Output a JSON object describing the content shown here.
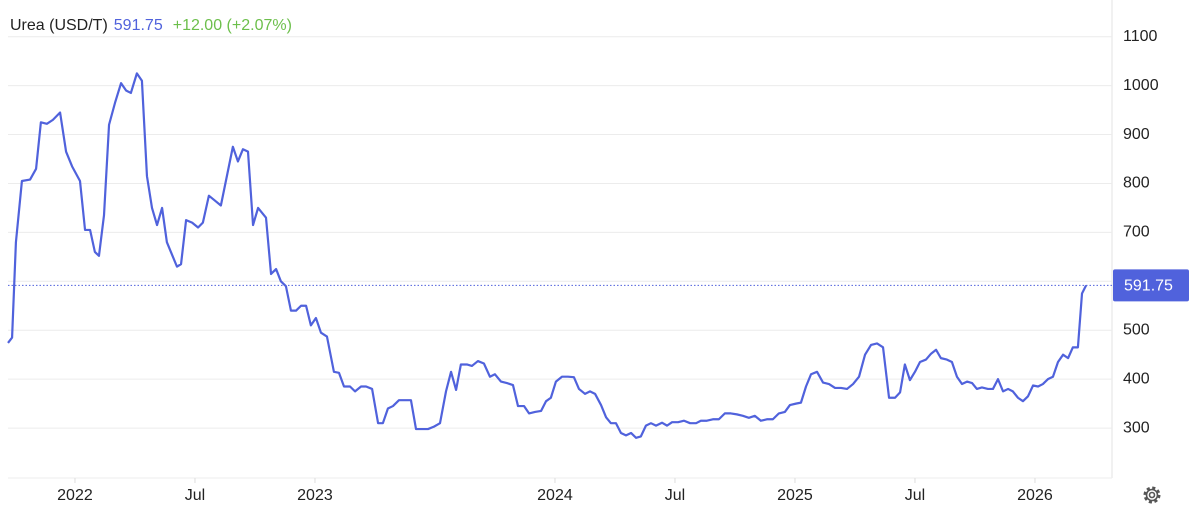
{
  "chart_data": {
    "type": "line",
    "last_price": 591.75,
    "change": "+12.00 (+2.07%)",
    "x": [
      2021.721,
      2021.738,
      2021.754,
      2021.779,
      2021.813,
      2021.838,
      2021.858,
      2021.883,
      2021.908,
      2021.938,
      2021.963,
      2021.988,
      2022.021,
      2022.042,
      2022.063,
      2022.083,
      2022.1,
      2022.121,
      2022.142,
      2022.167,
      2022.192,
      2022.213,
      2022.233,
      2022.258,
      2022.279,
      2022.3,
      2022.321,
      2022.342,
      2022.363,
      2022.383,
      2022.404,
      2022.425,
      2022.442,
      2022.463,
      2022.488,
      2022.513,
      2022.533,
      2022.558,
      2022.583,
      2022.608,
      2022.633,
      2022.658,
      2022.679,
      2022.7,
      2022.721,
      2022.742,
      2022.763,
      2022.796,
      2022.817,
      2022.838,
      2022.858,
      2022.879,
      2022.9,
      2022.921,
      2022.942,
      2022.963,
      2022.983,
      2023.004,
      2023.025,
      2023.05,
      2023.079,
      2023.1,
      2023.121,
      2023.146,
      2023.167,
      2023.192,
      2023.213,
      2023.238,
      2023.263,
      2023.283,
      2023.304,
      2023.325,
      2023.35,
      2023.379,
      2023.4,
      2023.421,
      2023.446,
      2023.471,
      2023.496,
      2023.521,
      2023.546,
      2023.567,
      2023.588,
      2023.608,
      2023.633,
      2023.654,
      2023.679,
      2023.704,
      2023.729,
      2023.75,
      2023.775,
      2023.8,
      2023.825,
      2023.846,
      2023.871,
      2023.892,
      2023.917,
      2023.942,
      2023.963,
      2023.983,
      2024.004,
      2024.029,
      2024.054,
      2024.079,
      2024.1,
      2024.125,
      2024.146,
      2024.167,
      2024.192,
      2024.213,
      2024.233,
      2024.254,
      2024.275,
      2024.296,
      2024.317,
      2024.338,
      2024.358,
      2024.379,
      2024.4,
      2024.421,
      2024.446,
      2024.467,
      2024.488,
      2024.513,
      2024.538,
      2024.563,
      2024.588,
      2024.608,
      2024.633,
      2024.658,
      2024.683,
      2024.708,
      2024.733,
      2024.758,
      2024.783,
      2024.808,
      2024.833,
      2024.858,
      2024.883,
      2024.908,
      2024.933,
      2024.958,
      2024.979,
      2025.004,
      2025.025,
      2025.046,
      2025.067,
      2025.092,
      2025.117,
      2025.142,
      2025.167,
      2025.192,
      2025.217,
      2025.242,
      2025.267,
      2025.292,
      2025.317,
      2025.342,
      2025.367,
      2025.392,
      2025.417,
      2025.438,
      2025.458,
      2025.479,
      2025.5,
      2025.521,
      2025.546,
      2025.567,
      2025.588,
      2025.608,
      2025.633,
      2025.654,
      2025.675,
      2025.696,
      2025.717,
      2025.738,
      2025.758,
      2025.779,
      2025.804,
      2025.825,
      2025.846,
      2025.867,
      2025.888,
      2025.908,
      2025.929,
      2025.95,
      2025.971,
      2025.992,
      2026.013,
      2026.033,
      2026.054,
      2026.075,
      2026.096,
      2026.117,
      2026.138,
      2026.158,
      2026.179,
      2026.196,
      2026.213
    ],
    "series": [
      {
        "name": "Urea (USD/T)",
        "color": "#5062dc",
        "values": [
          474,
          485,
          680,
          805,
          808,
          830,
          925,
          922,
          930,
          945,
          865,
          835,
          805,
          705,
          705,
          660,
          652,
          735,
          920,
          965,
          1005,
          990,
          985,
          1025,
          1010,
          815,
          750,
          715,
          750,
          680,
          655,
          630,
          635,
          725,
          720,
          710,
          720,
          775,
          765,
          755,
          815,
          875,
          845,
          870,
          865,
          715,
          750,
          730,
          615,
          625,
          600,
          590,
          540,
          540,
          550,
          550,
          510,
          525,
          495,
          487,
          415,
          413,
          385,
          385,
          375,
          385,
          385,
          380,
          310,
          310,
          340,
          345,
          357,
          357,
          357,
          298,
          298,
          298,
          303,
          310,
          375,
          415,
          378,
          430,
          430,
          427,
          437,
          432,
          405,
          410,
          395,
          392,
          388,
          345,
          345,
          330,
          333,
          335,
          355,
          362,
          395,
          405,
          405,
          404,
          380,
          370,
          375,
          370,
          347,
          322,
          310,
          310,
          290,
          285,
          290,
          280,
          283,
          305,
          310,
          305,
          311,
          305,
          312,
          312,
          315,
          310,
          310,
          315,
          315,
          318,
          318,
          330,
          330,
          328,
          325,
          321,
          325,
          315,
          318,
          318,
          330,
          333,
          347,
          350,
          352,
          385,
          410,
          415,
          393,
          390,
          382,
          382,
          380,
          390,
          405,
          450,
          470,
          473,
          465,
          362,
          362,
          373,
          430,
          398,
          415,
          435,
          440,
          452,
          460,
          443,
          440,
          435,
          405,
          390,
          395,
          392,
          380,
          383,
          380,
          380,
          400,
          375,
          380,
          375,
          362,
          355,
          365,
          387,
          385,
          390,
          400,
          405,
          435,
          450,
          443,
          465,
          465,
          575,
          591.75
        ]
      }
    ],
    "change_color": "#6cbf4b",
    "xlim": [
      2021.721,
      2026.321
    ],
    "xticks": [
      {
        "value": 2022,
        "label": "2022"
      },
      {
        "value": 2022.5,
        "label": "Jul"
      },
      {
        "value": 2023,
        "label": "2023"
      },
      {
        "value": 2024,
        "label": "2024"
      },
      {
        "value": 2024.5,
        "label": "Jul"
      },
      {
        "value": 2025,
        "label": "2025"
      },
      {
        "value": 2025.5,
        "label": "Jul"
      },
      {
        "value": 2026,
        "label": "2026"
      }
    ],
    "ylim": [
      200,
      1175
    ],
    "yticks": [
      300,
      400,
      500,
      600,
      700,
      800,
      900,
      1000,
      1100
    ],
    "grid": true
  }
}
